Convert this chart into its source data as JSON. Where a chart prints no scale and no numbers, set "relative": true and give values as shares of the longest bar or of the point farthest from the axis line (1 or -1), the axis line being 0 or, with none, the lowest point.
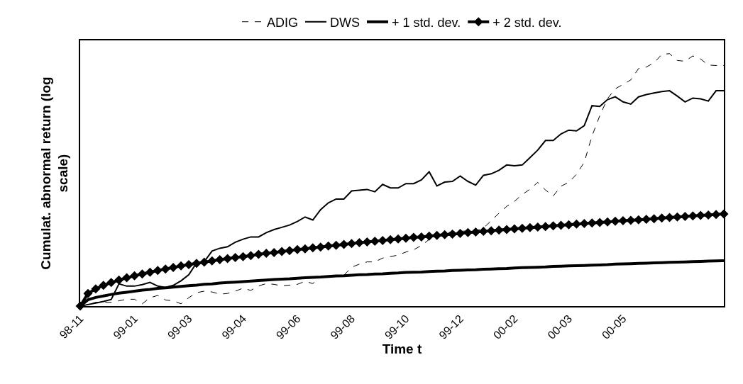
{
  "chart_data": {
    "type": "line",
    "relative": true,
    "xlabel": "Time t",
    "ylabel": "Cumulat. abnormal return (log scale)",
    "legend": "top",
    "grid": false,
    "categories": [
      "98-11",
      null,
      null,
      null,
      null,
      null,
      null,
      "99-01",
      null,
      null,
      null,
      null,
      null,
      null,
      "99-03",
      null,
      null,
      null,
      null,
      null,
      null,
      "99-04",
      null,
      null,
      null,
      null,
      null,
      null,
      "99-06",
      null,
      null,
      null,
      null,
      null,
      null,
      "99-08",
      null,
      null,
      null,
      null,
      null,
      null,
      "99-10",
      null,
      null,
      null,
      null,
      null,
      null,
      "99-12",
      null,
      null,
      null,
      null,
      null,
      null,
      "00-02",
      null,
      null,
      null,
      null,
      null,
      null,
      "00-03",
      null,
      null,
      null,
      null,
      null,
      null,
      "00-05",
      null,
      null,
      null,
      null,
      null,
      null,
      null,
      null,
      null,
      null,
      null,
      null,
      null
    ],
    "series": [
      {
        "name": "ADIG",
        "color": "#000000",
        "line_style": "dashed",
        "marker": "none",
        "values": [
          0,
          0.006,
          0.015,
          0.015,
          0.015,
          0.021,
          0.027,
          0.027,
          0.009,
          0.033,
          0.042,
          0.024,
          0.021,
          0.009,
          0.033,
          0.053,
          0.059,
          0.056,
          0.047,
          0.05,
          0.059,
          0.071,
          0.062,
          0.08,
          0.089,
          0.086,
          0.08,
          0.083,
          0.086,
          0.098,
          0.089,
          0.116,
          0.116,
          0.119,
          0.122,
          0.154,
          0.166,
          0.175,
          0.175,
          0.19,
          0.196,
          0.202,
          0.214,
          0.223,
          0.24,
          0.264,
          0.276,
          0.288,
          0.294,
          0.297,
          0.297,
          0.297,
          0.309,
          0.338,
          0.368,
          0.395,
          0.415,
          0.442,
          0.463,
          0.49,
          0.46,
          0.436,
          0.475,
          0.49,
          0.522,
          0.57,
          0.674,
          0.754,
          0.822,
          0.861,
          0.878,
          0.896,
          0.941,
          0.947,
          0.964,
          0.997,
          1,
          0.973,
          0.97,
          0.991,
          0.979,
          0.955,
          0.953,
          0.953
        ]
      },
      {
        "name": "DWS",
        "color": "#000000",
        "line_style": "solid",
        "marker": "none",
        "values": [
          0,
          0.006,
          0.012,
          0.018,
          0.026,
          0.088,
          0.079,
          0.079,
          0.085,
          0.094,
          0.079,
          0.074,
          0.082,
          0.1,
          0.124,
          0.171,
          0.176,
          0.218,
          0.229,
          0.235,
          0.253,
          0.265,
          0.274,
          0.274,
          0.291,
          0.303,
          0.312,
          0.321,
          0.335,
          0.353,
          0.341,
          0.382,
          0.409,
          0.424,
          0.424,
          0.456,
          0.459,
          0.462,
          0.453,
          0.482,
          0.468,
          0.468,
          0.485,
          0.485,
          0.5,
          0.532,
          0.476,
          0.491,
          0.494,
          0.515,
          0.494,
          0.479,
          0.518,
          0.524,
          0.538,
          0.559,
          0.556,
          0.559,
          0.588,
          0.618,
          0.656,
          0.656,
          0.682,
          0.697,
          0.694,
          0.715,
          0.794,
          0.791,
          0.818,
          0.829,
          0.809,
          0.8,
          0.829,
          0.838,
          0.844,
          0.85,
          0.853,
          0.832,
          0.809,
          0.824,
          0.821,
          0.812,
          0.853,
          0.853
        ]
      },
      {
        "name": "+ 1 std. dev.",
        "color": "#000000",
        "line_style": "solid",
        "marker": "none",
        "values": [
          0,
          0.025,
          0.034,
          0.04,
          0.046,
          0.051,
          0.055,
          0.059,
          0.063,
          0.066,
          0.07,
          0.072,
          0.075,
          0.078,
          0.081,
          0.083,
          0.086,
          0.088,
          0.091,
          0.093,
          0.095,
          0.097,
          0.099,
          0.101,
          0.103,
          0.105,
          0.107,
          0.108,
          0.11,
          0.112,
          0.114,
          0.115,
          0.117,
          0.119,
          0.12,
          0.122,
          0.124,
          0.125,
          0.127,
          0.128,
          0.13,
          0.131,
          0.133,
          0.134,
          0.135,
          0.137,
          0.138,
          0.139,
          0.141,
          0.142,
          0.143,
          0.144,
          0.146,
          0.147,
          0.148,
          0.149,
          0.151,
          0.152,
          0.153,
          0.154,
          0.155,
          0.157,
          0.158,
          0.159,
          0.16,
          0.161,
          0.162,
          0.163,
          0.164,
          0.166,
          0.167,
          0.168,
          0.169,
          0.17,
          0.171,
          0.172,
          0.173,
          0.174,
          0.175,
          0.176,
          0.177,
          0.178,
          0.179,
          0.18
        ]
      },
      {
        "name": "+ 2 std. dev.",
        "color": "#000000",
        "line_style": "solid",
        "marker": "diamond",
        "values": [
          0,
          0.05,
          0.068,
          0.082,
          0.093,
          0.103,
          0.112,
          0.12,
          0.127,
          0.134,
          0.141,
          0.147,
          0.153,
          0.159,
          0.164,
          0.169,
          0.174,
          0.179,
          0.184,
          0.188,
          0.192,
          0.196,
          0.2,
          0.205,
          0.209,
          0.212,
          0.216,
          0.22,
          0.224,
          0.227,
          0.231,
          0.234,
          0.238,
          0.241,
          0.244,
          0.248,
          0.251,
          0.254,
          0.257,
          0.26,
          0.263,
          0.266,
          0.269,
          0.272,
          0.274,
          0.277,
          0.28,
          0.283,
          0.285,
          0.288,
          0.291,
          0.293,
          0.296,
          0.298,
          0.301,
          0.303,
          0.306,
          0.308,
          0.311,
          0.313,
          0.315,
          0.318,
          0.32,
          0.322,
          0.325,
          0.327,
          0.329,
          0.331,
          0.333,
          0.336,
          0.338,
          0.34,
          0.342,
          0.344,
          0.346,
          0.349,
          0.351,
          0.353,
          0.355,
          0.357,
          0.359,
          0.361,
          0.363,
          0.365
        ]
      }
    ]
  }
}
